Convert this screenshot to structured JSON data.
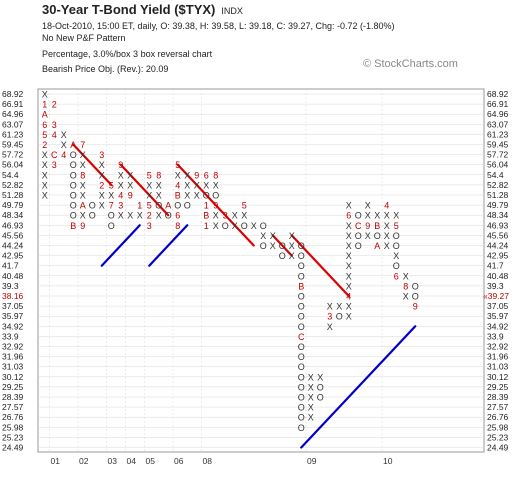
{
  "header": {
    "title": "30-Year T-Bond Yield ($TYX)",
    "exchange": "INDX",
    "quote": "18-Oct-2010, 15:00 ET, daily, O: 39.38, H: 39.58, L: 39.18, C: 39.27, Chg: -0.72 (-1.80%)",
    "pattern": "No New P&F Pattern",
    "box_info": "Percentage, 3.0%/box 3 box reversal chart",
    "price_obj": "Bearish Price Obj. (Rev.): 20.09",
    "watermark": "© StockCharts.com"
  },
  "chart_data": {
    "type": "point-and-figure",
    "box_size": "3.0%/box",
    "reversal": 3,
    "y_levels": [
      "68.92",
      "66.91",
      "64.96",
      "63.07",
      "61.23",
      "59.45",
      "57.72",
      "56.04",
      "54.4",
      "52.82",
      "51.28",
      "49.79",
      "48.34",
      "46.93",
      "45.56",
      "44.24",
      "42.95",
      "41.7",
      "40.48",
      "39.3",
      "38.16",
      "37.05",
      "35.97",
      "34.92",
      "33.9",
      "32.92",
      "31.96",
      "31.03",
      "30.12",
      "29.25",
      "28.39",
      "27.57",
      "26.76",
      "25.98",
      "25.23",
      "24.49"
    ],
    "left_highlight_index": 20,
    "right_last_price": "39.27",
    "x_labels": [
      {
        "label": "01",
        "col": 1
      },
      {
        "label": "02",
        "col": 4
      },
      {
        "label": "03",
        "col": 7
      },
      {
        "label": "04",
        "col": 9
      },
      {
        "label": "05",
        "col": 11
      },
      {
        "label": "06",
        "col": 14
      },
      {
        "label": "08",
        "col": 17
      },
      {
        "label": "09",
        "col": 28
      },
      {
        "label": "10",
        "col": 36
      }
    ],
    "columns": [
      {
        "type": "X",
        "bottom": 10,
        "top": 0,
        "marks": {
          "0": "X",
          "1": "1",
          "2": "A",
          "3": "6",
          "4": "5",
          "5": "2",
          "6": "X",
          "7": "X",
          "8": "X",
          "9": "X",
          "10": "X"
        }
      },
      {
        "type": "O",
        "top": 1,
        "bottom": 8,
        "marks": {
          "1": "2",
          "3": "3",
          "4": "4",
          "6": "C",
          "7": "3"
        }
      },
      {
        "type": "X",
        "bottom": 6,
        "top": 4,
        "marks": {
          "4": "X",
          "5": "X",
          "6": "4"
        }
      },
      {
        "type": "O",
        "top": 5,
        "bottom": 14,
        "marks": {
          "5": "A",
          "6": "O",
          "7": "O",
          "8": "O",
          "9": "O",
          "10": "O",
          "11": "O",
          "12": "O",
          "13": "B"
        }
      },
      {
        "type": "X",
        "bottom": 13,
        "top": 5,
        "marks": {
          "5": "7",
          "6": "X",
          "7": "X",
          "8": "8",
          "9": "X",
          "10": "X",
          "11": "A",
          "12": "X",
          "13": "9"
        }
      },
      {
        "type": "O",
        "top": 11,
        "bottom": 13,
        "marks": {
          "11": "O",
          "12": "O"
        }
      },
      {
        "type": "X",
        "bottom": 12,
        "top": 6,
        "marks": {
          "6": "3",
          "7": "X",
          "8": "X",
          "9": "2",
          "10": "X",
          "11": "X"
        }
      },
      {
        "type": "O",
        "top": 9,
        "bottom": 14,
        "marks": {
          "9": "5",
          "10": "X",
          "11": "7",
          "12": "O",
          "13": "O"
        }
      },
      {
        "type": "X",
        "bottom": 13,
        "top": 7,
        "marks": {
          "7": "9",
          "8": "X",
          "9": "X",
          "10": "4",
          "11": "3",
          "12": "X"
        }
      },
      {
        "type": "O",
        "top": 8,
        "bottom": 13,
        "marks": {
          "8": "X",
          "9": "X",
          "10": "9",
          "12": "X"
        }
      },
      {
        "type": "X",
        "bottom": 13,
        "top": 11,
        "marks": {
          "11": "1",
          "12": "X"
        }
      },
      {
        "type": "O",
        "top": 8,
        "bottom": 14,
        "marks": {
          "8": "5",
          "9": "X",
          "10": "X",
          "11": "5",
          "12": "2",
          "13": "3"
        }
      },
      {
        "type": "X",
        "bottom": 13,
        "top": 8,
        "marks": {
          "8": "8",
          "9": "X",
          "10": "X",
          "11": "O",
          "12": "X"
        }
      },
      {
        "type": "O",
        "top": 11,
        "bottom": 13,
        "marks": {
          "11": "A",
          "12": "O"
        }
      },
      {
        "type": "X",
        "bottom": 14,
        "top": 7,
        "marks": {
          "7": "5",
          "8": "X",
          "9": "4",
          "10": "B",
          "11": "O",
          "12": "6",
          "13": "8"
        }
      },
      {
        "type": "O",
        "top": 7,
        "bottom": 11,
        "marks": {
          "8": "X",
          "9": "X",
          "10": "X",
          "11": "O"
        }
      },
      {
        "type": "X",
        "bottom": 11,
        "top": 8,
        "marks": {
          "8": "9",
          "9": "X",
          "10": "X"
        }
      },
      {
        "type": "O",
        "top": 8,
        "bottom": 14,
        "marks": {
          "8": "6",
          "9": "X",
          "10": "O",
          "11": "1",
          "12": "B",
          "13": "1"
        }
      },
      {
        "type": "X",
        "bottom": 14,
        "top": 8,
        "marks": {
          "8": "8",
          "9": "X",
          "10": "O",
          "11": "9",
          "12": "X",
          "13": "X"
        }
      },
      {
        "type": "O",
        "top": 12,
        "bottom": 14,
        "marks": {
          "12": "3",
          "13": "O"
        }
      },
      {
        "type": "X",
        "bottom": 14,
        "top": 12,
        "marks": {
          "12": "X",
          "13": "X"
        }
      },
      {
        "type": "O",
        "top": 11,
        "bottom": 14,
        "marks": {
          "11": "5",
          "12": "X",
          "13": "O"
        }
      },
      {
        "type": "X",
        "bottom": 14,
        "top": 13,
        "marks": {
          "13": "X"
        }
      },
      {
        "type": "O",
        "top": 13,
        "bottom": 16,
        "marks": {
          "13": "O",
          "14": "X",
          "15": "O"
        }
      },
      {
        "type": "X",
        "bottom": 16,
        "top": 14,
        "marks": {
          "14": "X",
          "15": "X"
        }
      },
      {
        "type": "O",
        "top": 15,
        "bottom": 17,
        "marks": {
          "15": "O",
          "16": "O"
        }
      },
      {
        "type": "X",
        "bottom": 17,
        "top": 14,
        "marks": {
          "14": "X",
          "15": "X",
          "16": "X"
        }
      },
      {
        "type": "O",
        "top": 15,
        "bottom": 34,
        "marks": {
          "15": "O",
          "16": "O",
          "17": "O",
          "18": "O",
          "19": "B",
          "20": "O",
          "21": "O",
          "22": "O",
          "23": "O",
          "24": "C",
          "25": "O",
          "26": "O",
          "27": "O",
          "28": "O",
          "29": "O",
          "30": "O",
          "31": "O",
          "32": "O",
          "33": "O"
        }
      },
      {
        "type": "X",
        "bottom": 33,
        "top": 28,
        "marks": {
          "28": "X",
          "29": "X",
          "30": "X",
          "31": "X",
          "32": "X"
        }
      },
      {
        "type": "O",
        "top": 28,
        "bottom": 31,
        "marks": {
          "28": "X",
          "29": "O",
          "30": "O"
        }
      },
      {
        "type": "X",
        "bottom": 24,
        "top": 21,
        "marks": {
          "21": "X",
          "22": "3",
          "23": "X"
        }
      },
      {
        "type": "O",
        "top": 21,
        "bottom": 23,
        "marks": {
          "21": "X",
          "22": "O"
        }
      },
      {
        "type": "X",
        "bottom": 23,
        "top": 11,
        "marks": {
          "11": "X",
          "12": "6",
          "13": "X",
          "14": "X",
          "15": "X",
          "16": "X",
          "17": "X",
          "18": "X",
          "19": "X",
          "20": "4",
          "21": "X",
          "22": "X"
        }
      },
      {
        "type": "O",
        "top": 11,
        "bottom": 16,
        "marks": {
          "12": "O",
          "13": "C",
          "14": "O",
          "15": "O"
        }
      },
      {
        "type": "X",
        "bottom": 15,
        "top": 11,
        "marks": {
          "11": "X",
          "12": "X",
          "13": "9",
          "14": "X"
        }
      },
      {
        "type": "O",
        "top": 12,
        "bottom": 16,
        "marks": {
          "12": "X",
          "13": "B",
          "14": "O",
          "15": "A"
        }
      },
      {
        "type": "X",
        "bottom": 16,
        "top": 11,
        "marks": {
          "11": "4",
          "12": "X",
          "13": "X",
          "14": "X",
          "15": "X"
        }
      },
      {
        "type": "O",
        "top": 12,
        "bottom": 19,
        "marks": {
          "12": "X",
          "13": "5",
          "14": "O",
          "15": "O",
          "16": "X",
          "17": "O",
          "18": "6"
        }
      },
      {
        "type": "X",
        "bottom": 21,
        "top": 18,
        "marks": {
          "18": "X",
          "19": "8",
          "20": "X"
        }
      },
      {
        "type": "O",
        "top": 19,
        "bottom": 22,
        "marks": {
          "19": "O",
          "20": "O",
          "21": "9"
        }
      }
    ],
    "trendlines": [
      {
        "color": "#e00000",
        "from": {
          "col": 3,
          "level": 5
        },
        "to": {
          "col": 7,
          "level": 9
        }
      },
      {
        "color": "#e00000",
        "from": {
          "col": 8,
          "level": 7
        },
        "to": {
          "col": 13,
          "level": 12
        }
      },
      {
        "color": "#e00000",
        "from": {
          "col": 14,
          "level": 7
        },
        "to": {
          "col": 22,
          "level": 15
        }
      },
      {
        "color": "#e00000",
        "from": {
          "col": 24,
          "level": 14
        },
        "to": {
          "col": 26,
          "level": 16
        }
      },
      {
        "color": "#e00000",
        "from": {
          "col": 26,
          "level": 14
        },
        "to": {
          "col": 32,
          "level": 20
        }
      },
      {
        "color": "#0000cc",
        "from": {
          "col": 6,
          "level": 17
        },
        "to": {
          "col": 10,
          "level": 13
        }
      },
      {
        "color": "#0000cc",
        "from": {
          "col": 11,
          "level": 17
        },
        "to": {
          "col": 15,
          "level": 13
        }
      },
      {
        "color": "#0000cc",
        "from": {
          "col": 27,
          "level": 35
        },
        "to": {
          "col": 39,
          "level": 23
        }
      }
    ],
    "colors": {
      "x_marks": "#333333",
      "o_marks": "#333333",
      "month_codes": "#c00000",
      "highlight": "#c00000",
      "grid": "#d8d8d8"
    }
  }
}
